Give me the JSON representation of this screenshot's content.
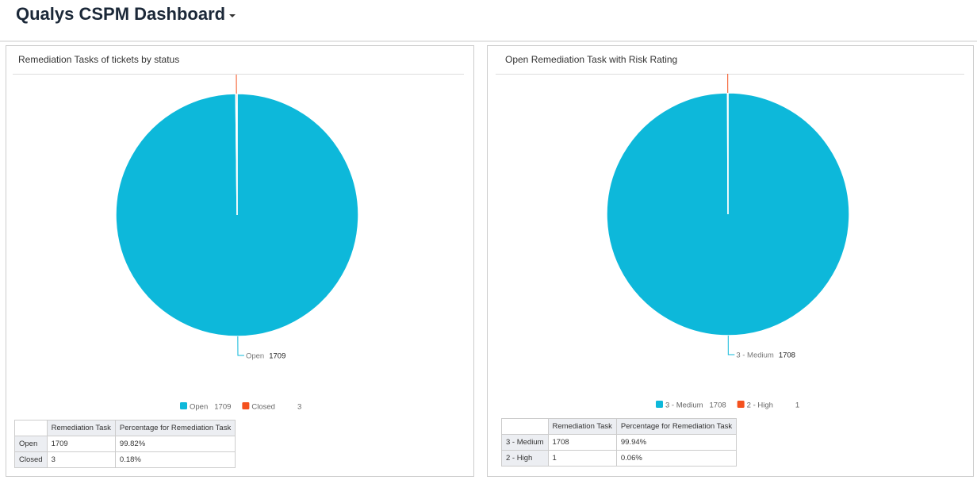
{
  "header": {
    "title": "Qualys CSPM Dashboard"
  },
  "chart_data": [
    {
      "type": "pie",
      "title": "Remediation Tasks of tickets by status",
      "categories": [
        "Open",
        "Closed"
      ],
      "values": [
        1709,
        3
      ],
      "colors": [
        "#0db8da",
        "#f4511e"
      ]
    },
    {
      "type": "pie",
      "title": "Open Remediation Task with Risk Rating",
      "categories": [
        "3 - Medium",
        "2 - High"
      ],
      "values": [
        1708,
        1
      ],
      "colors": [
        "#0db8da",
        "#f4511e"
      ]
    }
  ],
  "tables": [
    {
      "header": [
        "Remediation Task",
        "Percentage for Remediation Task"
      ],
      "rows": [
        [
          "Open",
          "1709",
          "99.82%"
        ],
        [
          "Closed",
          "3",
          "0.18%"
        ]
      ]
    },
    {
      "header": [
        "Remediation Task",
        "Percentage for Remediation Task"
      ],
      "rows": [
        [
          "3 - Medium",
          "1708",
          "99.94%"
        ],
        [
          "2 - High",
          "1",
          "0.06%"
        ]
      ]
    }
  ]
}
